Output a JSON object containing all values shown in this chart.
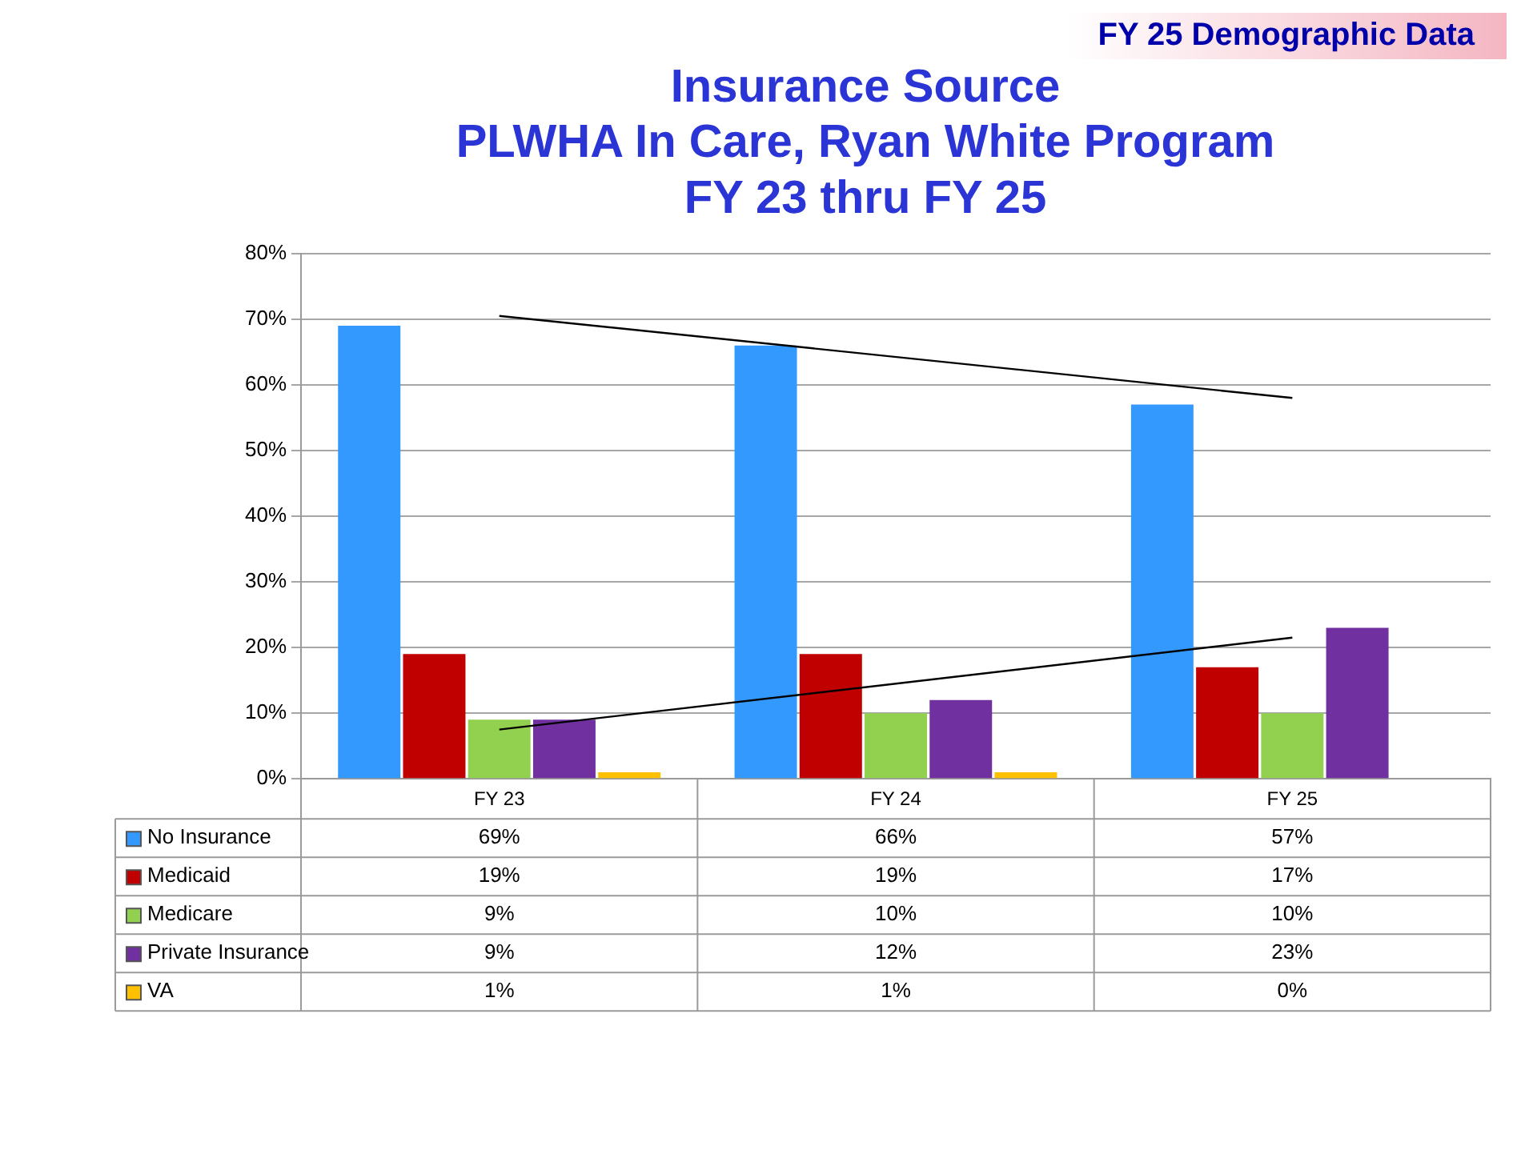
{
  "chart_data": {
    "type": "bar",
    "title": [
      "Insurance Source",
      "PLWHA In Care, Ryan White Program",
      "FY 23 thru FY 25"
    ],
    "annotations": [
      "FY 25 Demographic Data"
    ],
    "categories": [
      "FY 23",
      "FY 24",
      "FY 25"
    ],
    "series": [
      {
        "name": "No Insurance",
        "color": "#3399ff",
        "values": [
          69,
          66,
          57
        ],
        "value_labels": [
          "69%",
          "66%",
          "57%"
        ]
      },
      {
        "name": "Medicaid",
        "color": "#c00000",
        "values": [
          19,
          19,
          17
        ],
        "value_labels": [
          "19%",
          "19%",
          "17%"
        ]
      },
      {
        "name": "Medicare",
        "color": "#92d050",
        "values": [
          9,
          10,
          10
        ],
        "value_labels": [
          "9%",
          "10%",
          "10%"
        ]
      },
      {
        "name": "Private Insurance",
        "color": "#7030a0",
        "values": [
          9,
          12,
          23
        ],
        "value_labels": [
          "9%",
          "12%",
          "23%"
        ]
      },
      {
        "name": "VA",
        "color": "#ffc000",
        "values": [
          1,
          1,
          0
        ],
        "value_labels": [
          "1%",
          "1%",
          "0%"
        ]
      },
      {
        "type": "line",
        "color": "#000000",
        "x": [
          "FY 23",
          "FY 25"
        ],
        "values": [
          70.5,
          58
        ]
      },
      {
        "type": "line",
        "color": "#000000",
        "x": [
          "FY 23",
          "FY 25"
        ],
        "values": [
          7.5,
          21.5
        ]
      }
    ],
    "ylim": [
      0,
      80
    ],
    "yticks": [
      {
        "value": 0,
        "label": "0%"
      },
      {
        "value": 10,
        "label": "10%"
      },
      {
        "value": 20,
        "label": "20%"
      },
      {
        "value": 30,
        "label": "30%"
      },
      {
        "value": 40,
        "label": "40%"
      },
      {
        "value": 50,
        "label": "50%"
      },
      {
        "value": 60,
        "label": "60%"
      },
      {
        "value": 70,
        "label": "70%"
      },
      {
        "value": 80,
        "label": "80%"
      }
    ],
    "grid": "y",
    "legend": "bottom",
    "marker": "none",
    "line_style": "solid"
  }
}
